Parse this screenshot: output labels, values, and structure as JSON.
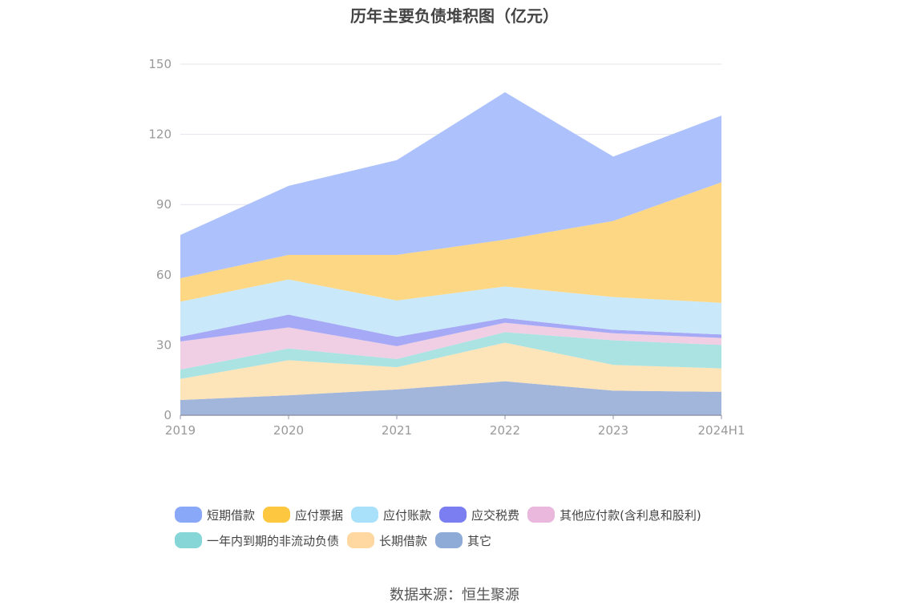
{
  "chart_data": {
    "type": "area",
    "title": "历年主要负债堆积图（亿元）",
    "x": [
      "2019",
      "2020",
      "2021",
      "2022",
      "2023",
      "2024H1"
    ],
    "ylim": [
      0,
      150
    ],
    "yticks": [
      0,
      30,
      60,
      90,
      120,
      150
    ],
    "stacked": true,
    "grid": true,
    "legend_position": "bottom",
    "series": [
      {
        "name": "其它",
        "color": "#9db2d9",
        "values": [
          6.5,
          8.5,
          11,
          14.5,
          10.5,
          10
        ]
      },
      {
        "name": "长期借款",
        "color": "#fde3b5",
        "values": [
          9,
          15,
          9.5,
          16.5,
          11,
          10
        ]
      },
      {
        "name": "一年内到期的非流动负债",
        "color": "#a6e1e1",
        "values": [
          4,
          5,
          3.5,
          4.5,
          10.5,
          10
        ]
      },
      {
        "name": "其他应付款(含利息和股利)",
        "color": "#efcbe3",
        "values": [
          12,
          9,
          5.5,
          4,
          3,
          3
        ]
      },
      {
        "name": "应交税费",
        "color": "#a1a5f5",
        "values": [
          2,
          5.5,
          4,
          2,
          1.5,
          1.5
        ]
      },
      {
        "name": "应付账款",
        "color": "#c6e8fa",
        "values": [
          15,
          15,
          15.5,
          13.5,
          14,
          13.5
        ]
      },
      {
        "name": "应付票据",
        "color": "#fdd57d",
        "values": [
          10,
          10.5,
          19.5,
          20,
          32.5,
          51.5
        ]
      },
      {
        "name": "短期借款",
        "color": "#a9bffc",
        "values": [
          18.5,
          29.5,
          40.5,
          63,
          27.5,
          28.5
        ]
      }
    ],
    "legend": [
      {
        "name": "短期借款",
        "color": "#8aa8f8"
      },
      {
        "name": "应付票据",
        "color": "#fdc840"
      },
      {
        "name": "应付账款",
        "color": "#a9e0fa"
      },
      {
        "name": "应交税费",
        "color": "#7b7ef0"
      },
      {
        "name": "其他应付款(含利息和股利)",
        "color": "#eab8dc"
      },
      {
        "name": "一年内到期的非流动负债",
        "color": "#86d6d8"
      },
      {
        "name": "长期借款",
        "color": "#fed8a0"
      },
      {
        "name": "其它",
        "color": "#8eabd8"
      }
    ]
  },
  "source": "数据来源：恒生聚源"
}
